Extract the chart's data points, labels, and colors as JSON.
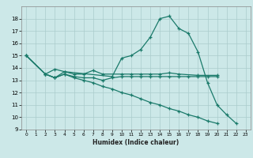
{
  "xlabel": "Humidex (Indice chaleur)",
  "bg_color": "#cce8e8",
  "grid_color": "#aacccc",
  "line_color": "#1a7a6a",
  "ylim": [
    9,
    19
  ],
  "xlim": [
    -0.5,
    23.5
  ],
  "yticks": [
    9,
    10,
    11,
    12,
    13,
    14,
    15,
    16,
    17,
    18
  ],
  "xticks": [
    0,
    1,
    2,
    3,
    4,
    5,
    6,
    7,
    8,
    9,
    10,
    11,
    12,
    13,
    14,
    15,
    16,
    17,
    18,
    19,
    20,
    21,
    22,
    23
  ],
  "line1_x": [
    0,
    2,
    3,
    4,
    5,
    6,
    7,
    8,
    10,
    11,
    12,
    13,
    14,
    15,
    16,
    18,
    20
  ],
  "line1_y": [
    15.0,
    13.5,
    13.9,
    13.7,
    13.5,
    13.5,
    13.8,
    13.5,
    13.5,
    13.5,
    13.5,
    13.5,
    13.5,
    13.6,
    13.5,
    13.4,
    13.4
  ],
  "line2_x": [
    2,
    3,
    4,
    5,
    6,
    7,
    8,
    9,
    10,
    11,
    12,
    13,
    14,
    15,
    16,
    17,
    18,
    19,
    20
  ],
  "line2_y": [
    13.5,
    13.2,
    13.5,
    13.3,
    13.2,
    13.2,
    13.0,
    13.2,
    13.3,
    13.3,
    13.3,
    13.3,
    13.3,
    13.3,
    13.3,
    13.3,
    13.3,
    13.3,
    13.3
  ],
  "line3_x": [
    0,
    2,
    3,
    4,
    9,
    10,
    11,
    12,
    13,
    14,
    15,
    16,
    17,
    18,
    19,
    20,
    21,
    22
  ],
  "line3_y": [
    15.0,
    13.5,
    13.2,
    13.7,
    13.3,
    14.8,
    15.0,
    15.5,
    16.5,
    18.0,
    18.2,
    17.2,
    16.8,
    15.3,
    12.8,
    11.0,
    10.2,
    9.5
  ],
  "line4_x": [
    0,
    2,
    3,
    4,
    5,
    6,
    7,
    8,
    9,
    10,
    11,
    12,
    13,
    14,
    15,
    16,
    17,
    18,
    19,
    20
  ],
  "line4_y": [
    15.0,
    13.5,
    13.2,
    13.5,
    13.2,
    13.0,
    12.8,
    12.5,
    12.3,
    12.0,
    11.8,
    11.5,
    11.2,
    11.0,
    10.7,
    10.5,
    10.2,
    10.0,
    9.7,
    9.5
  ]
}
